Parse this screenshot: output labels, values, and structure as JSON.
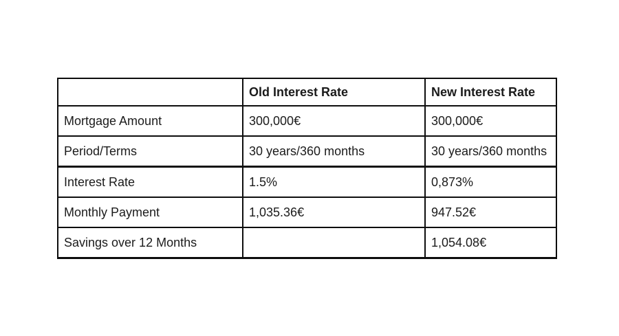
{
  "table": {
    "columns": [
      "",
      "Old Interest Rate",
      "New Interest Rate"
    ],
    "rows": [
      {
        "label": "Mortgage Amount",
        "old": "300,000€",
        "new": "300,000€"
      },
      {
        "label": "Period/Terms",
        "old": "30 years/360 months",
        "new": "30 years/360 months"
      },
      {
        "label": "Interest Rate",
        "old": "1.5%",
        "new": "0,873%"
      },
      {
        "label": "Monthly Payment",
        "old": "1,035.36€",
        "new": "947.52€"
      },
      {
        "label": "Savings over 12 Months",
        "old": "",
        "new": "1,054.08€"
      }
    ]
  },
  "colors": {
    "background": "#ffffff",
    "border": "#0d0d0d",
    "text": "#1b1b1b"
  }
}
